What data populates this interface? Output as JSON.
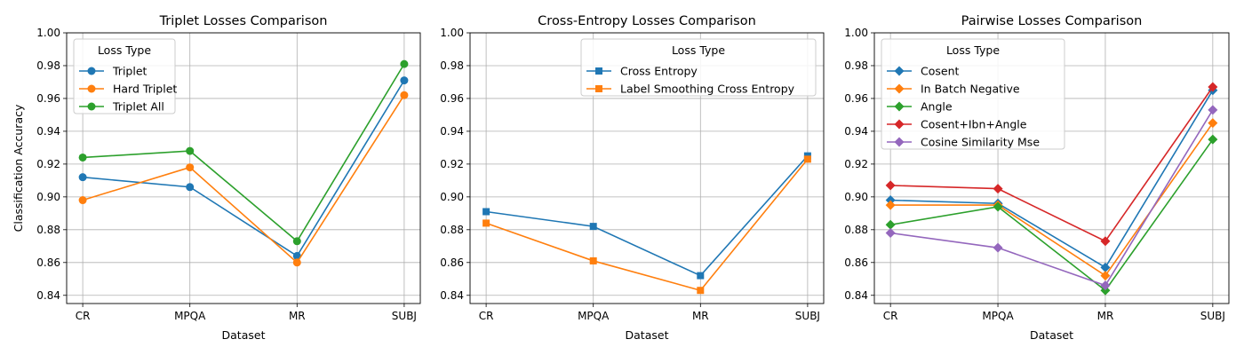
{
  "chart_data": [
    {
      "type": "line",
      "title": "Triplet Losses Comparison",
      "xlabel": "Dataset",
      "ylabel": "Classification Accuracy",
      "categories": [
        "CR",
        "MPQA",
        "MR",
        "SUBJ"
      ],
      "ylim": [
        0.835,
        1.0
      ],
      "yticks": [
        "0.84",
        "0.86",
        "0.88",
        "0.90",
        "0.92",
        "0.94",
        "0.96",
        "0.98",
        "1.00"
      ],
      "grid": true,
      "legend": {
        "title": "Loss Type",
        "placement": "top-left"
      },
      "series": [
        {
          "name": "Triplet",
          "color": "#1f77b4",
          "marker": "circle",
          "values": [
            0.912,
            0.906,
            0.864,
            0.971
          ]
        },
        {
          "name": "Hard Triplet",
          "color": "#ff7f0e",
          "marker": "circle",
          "values": [
            0.898,
            0.918,
            0.86,
            0.962
          ]
        },
        {
          "name": "Triplet All",
          "color": "#2ca02c",
          "marker": "circle",
          "values": [
            0.924,
            0.928,
            0.873,
            0.981
          ]
        }
      ]
    },
    {
      "type": "line",
      "title": "Cross-Entropy Losses Comparison",
      "xlabel": "Dataset",
      "ylabel": "",
      "categories": [
        "CR",
        "MPQA",
        "MR",
        "SUBJ"
      ],
      "ylim": [
        0.835,
        1.0
      ],
      "yticks": [
        "0.84",
        "0.86",
        "0.88",
        "0.90",
        "0.92",
        "0.94",
        "0.96",
        "0.98",
        "1.00"
      ],
      "grid": true,
      "legend": {
        "title": "Loss Type",
        "placement": "top-right"
      },
      "series": [
        {
          "name": "Cross Entropy",
          "color": "#1f77b4",
          "marker": "square",
          "values": [
            0.891,
            0.882,
            0.852,
            0.925
          ]
        },
        {
          "name": "Label Smoothing Cross Entropy",
          "color": "#ff7f0e",
          "marker": "square",
          "values": [
            0.884,
            0.861,
            0.843,
            0.923
          ]
        }
      ]
    },
    {
      "type": "line",
      "title": "Pairwise Losses Comparison",
      "xlabel": "Dataset",
      "ylabel": "",
      "categories": [
        "CR",
        "MPQA",
        "MR",
        "SUBJ"
      ],
      "ylim": [
        0.835,
        1.0
      ],
      "yticks": [
        "0.84",
        "0.86",
        "0.88",
        "0.90",
        "0.92",
        "0.94",
        "0.96",
        "0.98",
        "1.00"
      ],
      "grid": true,
      "legend": {
        "title": "Loss Type",
        "placement": "top-left"
      },
      "series": [
        {
          "name": "Cosent",
          "color": "#1f77b4",
          "marker": "diamond",
          "values": [
            0.898,
            0.896,
            0.857,
            0.965
          ]
        },
        {
          "name": "In Batch Negative",
          "color": "#ff7f0e",
          "marker": "diamond",
          "values": [
            0.895,
            0.895,
            0.852,
            0.945
          ]
        },
        {
          "name": "Angle",
          "color": "#2ca02c",
          "marker": "diamond",
          "values": [
            0.883,
            0.894,
            0.843,
            0.935
          ]
        },
        {
          "name": "Cosent+Ibn+Angle",
          "color": "#d62728",
          "marker": "diamond",
          "values": [
            0.907,
            0.905,
            0.873,
            0.967
          ]
        },
        {
          "name": "Cosine Similarity Mse",
          "color": "#9467bd",
          "marker": "diamond",
          "values": [
            0.878,
            0.869,
            0.846,
            0.953
          ]
        }
      ]
    }
  ]
}
